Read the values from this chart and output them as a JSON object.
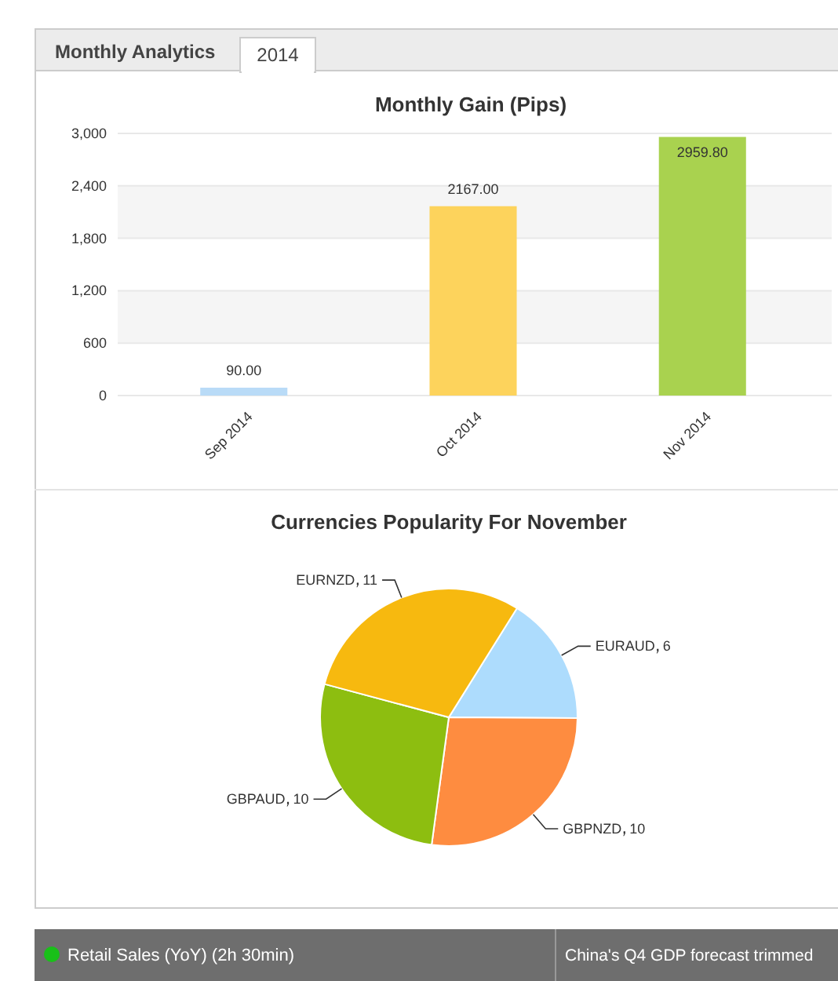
{
  "chart_data": [
    {
      "type": "other",
      "annotations": [
        "Monthly Analytics",
        "2014"
      ]
    },
    {
      "type": "bar",
      "title": "Monthly Gain (Pips)",
      "categories": [
        "Sep 2014",
        "Oct 2014",
        "Nov 2014"
      ],
      "values": [
        90.0,
        2167.0,
        2959.8
      ],
      "colors": [
        "#b9dbf7",
        "#fdd35c",
        "#a9d24f"
      ],
      "value_labels": [
        "90.00",
        "2167.00",
        "2959.80"
      ],
      "ylim": [
        0,
        3000
      ],
      "yticks": [
        0,
        {
          "value": 600,
          "label": "600"
        },
        {
          "value": 1200,
          "label": "1,200"
        },
        {
          "value": 1800,
          "label": "1,800"
        },
        {
          "value": 2400,
          "label": "2,400"
        },
        {
          "value": 3000,
          "label": "3,000"
        }
      ],
      "grid": "y"
    },
    {
      "type": "pie",
      "title": "Currencies Popularity For November",
      "categories": [
        "EURAUD",
        "GBPNZD",
        "GBPAUD",
        "EURNZD"
      ],
      "values": [
        6,
        10,
        10,
        11
      ],
      "colors": [
        "#addcfd",
        "#fe8c40",
        "#8dbe10",
        "#f7b90f"
      ],
      "data_labels": true
    },
    {
      "type": "other",
      "annotations": [
        "Retail Sales (YoY) (2h 30min)",
        "China's Q4 GDP forecast trimmed"
      ]
    }
  ]
}
